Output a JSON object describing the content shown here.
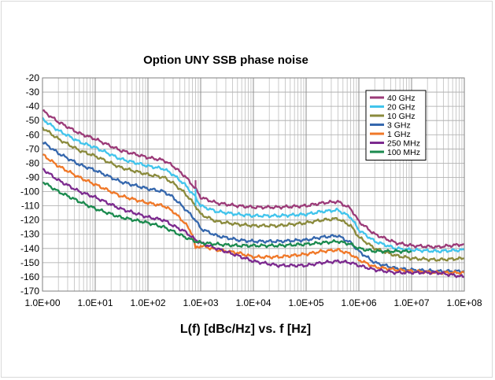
{
  "chart_data": {
    "type": "line",
    "title": "Option UNY SSB phase noise",
    "xlabel": "L(f) [dBc/Hz] vs. f [Hz]",
    "ylabel": "",
    "x_scale": "log",
    "xlim": [
      1,
      100000000
    ],
    "ylim": [
      -170,
      -20
    ],
    "grid": true,
    "legend_position": "top-right",
    "x_tick_labels": [
      "1.0E+00",
      "1.0E+01",
      "1.0E+02",
      "1.0E+03",
      "1.0E+04",
      "1.0E+05",
      "1.0E+06",
      "1.0E+07",
      "1.0E+08"
    ],
    "y_tick_labels": [
      "-20",
      "-30",
      "-40",
      "-50",
      "-60",
      "-70",
      "-80",
      "-90",
      "-100",
      "-110",
      "-120",
      "-130",
      "-140",
      "-150",
      "-160",
      "-170"
    ],
    "series": [
      {
        "name": "40 GHz",
        "color": "#9b3a78",
        "points": [
          [
            1,
            -43
          ],
          [
            2,
            -51
          ],
          [
            5,
            -59
          ],
          [
            10,
            -63
          ],
          [
            30,
            -71
          ],
          [
            100,
            -76
          ],
          [
            200,
            -78
          ],
          [
            300,
            -82
          ],
          [
            500,
            -89
          ],
          [
            800,
            -98
          ],
          [
            1000,
            -104
          ],
          [
            2000,
            -108
          ],
          [
            5000,
            -110
          ],
          [
            10000,
            -111
          ],
          [
            30000,
            -111
          ],
          [
            100000,
            -110
          ],
          [
            200000,
            -108
          ],
          [
            400000,
            -107
          ],
          [
            700000,
            -112
          ],
          [
            1000000,
            -121
          ],
          [
            2000000,
            -130
          ],
          [
            5000000,
            -136
          ],
          [
            10000000,
            -138
          ],
          [
            30000000,
            -139
          ],
          [
            100000000,
            -137
          ]
        ]
      },
      {
        "name": "20 GHz",
        "color": "#41c4ec",
        "points": [
          [
            1,
            -49
          ],
          [
            2,
            -57
          ],
          [
            5,
            -65
          ],
          [
            10,
            -69
          ],
          [
            30,
            -77
          ],
          [
            100,
            -82
          ],
          [
            200,
            -84
          ],
          [
            300,
            -88
          ],
          [
            500,
            -95
          ],
          [
            800,
            -104
          ],
          [
            1000,
            -110
          ],
          [
            2000,
            -114
          ],
          [
            5000,
            -116
          ],
          [
            10000,
            -117
          ],
          [
            30000,
            -117
          ],
          [
            100000,
            -116
          ],
          [
            200000,
            -114
          ],
          [
            400000,
            -113
          ],
          [
            700000,
            -118
          ],
          [
            1000000,
            -127
          ],
          [
            2000000,
            -135
          ],
          [
            5000000,
            -140
          ],
          [
            10000000,
            -141
          ],
          [
            30000000,
            -142
          ],
          [
            100000000,
            -141
          ]
        ]
      },
      {
        "name": "10 GHz",
        "color": "#8a8a3c",
        "points": [
          [
            1,
            -55
          ],
          [
            2,
            -63
          ],
          [
            5,
            -71
          ],
          [
            10,
            -75
          ],
          [
            30,
            -83
          ],
          [
            100,
            -88
          ],
          [
            200,
            -90
          ],
          [
            300,
            -94
          ],
          [
            500,
            -101
          ],
          [
            800,
            -110
          ],
          [
            1000,
            -116
          ],
          [
            2000,
            -121
          ],
          [
            5000,
            -123
          ],
          [
            10000,
            -124
          ],
          [
            30000,
            -124
          ],
          [
            100000,
            -122
          ],
          [
            200000,
            -120
          ],
          [
            400000,
            -119
          ],
          [
            700000,
            -124
          ],
          [
            1000000,
            -132
          ],
          [
            2000000,
            -140
          ],
          [
            5000000,
            -145
          ],
          [
            10000000,
            -147
          ],
          [
            30000000,
            -148
          ],
          [
            100000000,
            -147
          ]
        ]
      },
      {
        "name": "3 GHz",
        "color": "#3567ad",
        "points": [
          [
            1,
            -65
          ],
          [
            2,
            -73
          ],
          [
            5,
            -81
          ],
          [
            10,
            -85
          ],
          [
            30,
            -93
          ],
          [
            100,
            -98
          ],
          [
            200,
            -100
          ],
          [
            300,
            -104
          ],
          [
            500,
            -112
          ],
          [
            800,
            -120
          ],
          [
            1000,
            -126
          ],
          [
            2000,
            -131
          ],
          [
            5000,
            -134
          ],
          [
            10000,
            -135
          ],
          [
            30000,
            -135
          ],
          [
            100000,
            -134
          ],
          [
            200000,
            -132
          ],
          [
            400000,
            -131
          ],
          [
            700000,
            -136
          ],
          [
            1000000,
            -142
          ],
          [
            2000000,
            -150
          ],
          [
            5000000,
            -154
          ],
          [
            10000000,
            -155
          ],
          [
            30000000,
            -156
          ],
          [
            100000000,
            -156
          ]
        ]
      },
      {
        "name": "1 GHz",
        "color": "#f07828",
        "points": [
          [
            1,
            -74
          ],
          [
            2,
            -82
          ],
          [
            5,
            -90
          ],
          [
            10,
            -95
          ],
          [
            30,
            -103
          ],
          [
            100,
            -108
          ],
          [
            200,
            -110
          ],
          [
            300,
            -114
          ],
          [
            500,
            -122
          ],
          [
            700,
            -130
          ],
          [
            800,
            -140
          ],
          [
            1000,
            -138
          ],
          [
            2000,
            -141
          ],
          [
            5000,
            -143
          ],
          [
            10000,
            -146
          ],
          [
            30000,
            -146
          ],
          [
            100000,
            -144
          ],
          [
            200000,
            -142
          ],
          [
            400000,
            -141
          ],
          [
            700000,
            -144
          ],
          [
            1000000,
            -148
          ],
          [
            2000000,
            -153
          ],
          [
            5000000,
            -155
          ],
          [
            10000000,
            -156
          ],
          [
            30000000,
            -157
          ],
          [
            100000000,
            -157
          ]
        ]
      },
      {
        "name": "250 MHz",
        "color": "#7c2a8f",
        "points": [
          [
            1,
            -84
          ],
          [
            2,
            -92
          ],
          [
            5,
            -100
          ],
          [
            10,
            -104
          ],
          [
            30,
            -112
          ],
          [
            100,
            -118
          ],
          [
            200,
            -120
          ],
          [
            300,
            -124
          ],
          [
            500,
            -128
          ],
          [
            800,
            -134
          ],
          [
            1000,
            -136
          ],
          [
            2000,
            -140
          ],
          [
            5000,
            -145
          ],
          [
            10000,
            -149
          ],
          [
            30000,
            -152
          ],
          [
            100000,
            -152
          ],
          [
            200000,
            -150
          ],
          [
            400000,
            -149
          ],
          [
            700000,
            -150
          ],
          [
            1000000,
            -152
          ],
          [
            2000000,
            -155
          ],
          [
            5000000,
            -157
          ],
          [
            10000000,
            -157
          ],
          [
            30000000,
            -157
          ],
          [
            100000000,
            -160
          ]
        ]
      },
      {
        "name": "100 MHz",
        "color": "#1b8a4e",
        "points": [
          [
            1,
            -93
          ],
          [
            2,
            -100
          ],
          [
            5,
            -107
          ],
          [
            10,
            -112
          ],
          [
            30,
            -118
          ],
          [
            100,
            -122
          ],
          [
            200,
            -125
          ],
          [
            300,
            -128
          ],
          [
            500,
            -132
          ],
          [
            800,
            -135
          ],
          [
            1000,
            -136
          ],
          [
            2000,
            -137
          ],
          [
            5000,
            -138
          ],
          [
            10000,
            -138
          ],
          [
            30000,
            -138
          ],
          [
            100000,
            -137
          ],
          [
            200000,
            -136
          ],
          [
            400000,
            -135
          ],
          [
            700000,
            -137
          ],
          [
            1000000,
            -140
          ],
          [
            2000000,
            -142
          ],
          [
            5000000,
            -142
          ],
          [
            10000000,
            -142
          ]
        ]
      }
    ]
  }
}
